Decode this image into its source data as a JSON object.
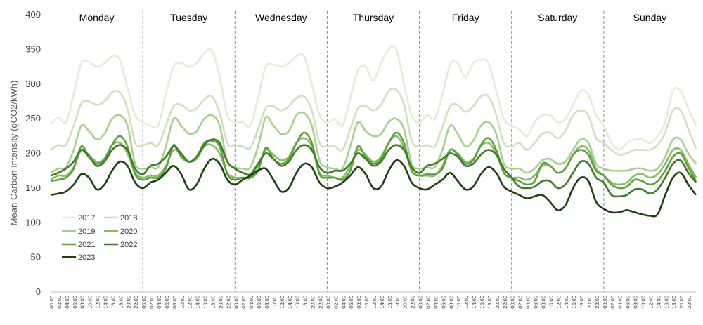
{
  "chart_data": {
    "type": "line",
    "title": "",
    "xlabel": "",
    "ylabel": "Mean Carbon Intensity (gCO2/kWh)",
    "ylim": [
      0,
      400
    ],
    "yticks": [
      "0",
      "50",
      "100",
      "150",
      "200",
      "250",
      "300",
      "350",
      "400"
    ],
    "days": [
      "Monday",
      "Tuesday",
      "Wednesday",
      "Thursday",
      "Friday",
      "Saturday",
      "Sunday"
    ],
    "hour_ticks": [
      "00:00",
      "02:00",
      "04:00",
      "06:00",
      "08:00",
      "10:00",
      "12:00",
      "14:00",
      "16:00",
      "18:00",
      "20:00",
      "22:00"
    ],
    "grid": false,
    "legend_position": "bottom-left",
    "series_profile_points": [
      "00:00",
      "02:00",
      "04:00",
      "06:00",
      "08:00",
      "10:00",
      "12:00",
      "14:00",
      "16:00",
      "18:00",
      "20:00",
      "22:00",
      "24:00"
    ],
    "series": [
      {
        "name": "2017",
        "color": "#e3ecd7",
        "days": {
          "Monday": [
            242,
            252,
            245,
            285,
            330,
            332,
            325,
            330,
            340,
            335,
            295,
            255,
            245
          ],
          "Tuesday": [
            245,
            240,
            240,
            285,
            325,
            330,
            325,
            330,
            345,
            348,
            310,
            255,
            245
          ],
          "Wednesday": [
            245,
            245,
            240,
            280,
            325,
            328,
            325,
            330,
            340,
            340,
            300,
            255,
            245
          ],
          "Thursday": [
            245,
            250,
            240,
            280,
            320,
            325,
            305,
            330,
            350,
            350,
            300,
            255,
            245
          ],
          "Friday": [
            245,
            255,
            250,
            285,
            328,
            330,
            310,
            330,
            335,
            330,
            290,
            250,
            240
          ],
          "Saturday": [
            240,
            235,
            225,
            245,
            255,
            255,
            245,
            250,
            270,
            290,
            285,
            255,
            240
          ],
          "Sunday": [
            225,
            215,
            205,
            215,
            220,
            220,
            215,
            225,
            245,
            290,
            290,
            265,
            240
          ]
        }
      },
      {
        "name": "2018",
        "color": "#cfe1bc",
        "days": {
          "Monday": [
            205,
            212,
            212,
            240,
            272,
            275,
            270,
            275,
            288,
            288,
            265,
            215,
            212
          ],
          "Tuesday": [
            212,
            215,
            212,
            240,
            268,
            270,
            262,
            265,
            278,
            282,
            258,
            215,
            212
          ],
          "Wednesday": [
            212,
            210,
            208,
            235,
            265,
            268,
            262,
            268,
            280,
            282,
            262,
            215,
            210
          ],
          "Thursday": [
            210,
            210,
            205,
            235,
            265,
            268,
            262,
            270,
            290,
            292,
            270,
            218,
            210
          ],
          "Friday": [
            210,
            212,
            210,
            238,
            268,
            270,
            260,
            268,
            282,
            282,
            255,
            215,
            210
          ],
          "Saturday": [
            220,
            215,
            205,
            215,
            228,
            230,
            222,
            232,
            255,
            262,
            255,
            222,
            215
          ],
          "Sunday": [
            212,
            205,
            198,
            200,
            205,
            205,
            205,
            212,
            230,
            262,
            262,
            235,
            207
          ]
        }
      },
      {
        "name": "2019",
        "color": "#a9cf8f",
        "days": {
          "Monday": [
            172,
            178,
            180,
            205,
            240,
            232,
            220,
            228,
            250,
            255,
            240,
            185,
            178
          ],
          "Tuesday": [
            178,
            180,
            180,
            210,
            250,
            240,
            228,
            232,
            250,
            255,
            240,
            188,
            180
          ],
          "Wednesday": [
            180,
            178,
            180,
            210,
            252,
            240,
            228,
            232,
            255,
            258,
            240,
            190,
            180
          ],
          "Thursday": [
            180,
            178,
            178,
            210,
            245,
            232,
            225,
            228,
            245,
            250,
            235,
            185,
            178
          ],
          "Friday": [
            178,
            180,
            180,
            205,
            240,
            228,
            210,
            218,
            240,
            245,
            228,
            185,
            178
          ],
          "Saturday": [
            180,
            178,
            172,
            178,
            190,
            192,
            185,
            188,
            205,
            220,
            215,
            185,
            178
          ],
          "Sunday": [
            175,
            175,
            175,
            175,
            178,
            178,
            175,
            178,
            195,
            220,
            220,
            200,
            185
          ]
        }
      },
      {
        "name": "2020",
        "color": "#86bd6a",
        "days": {
          "Monday": [
            162,
            168,
            168,
            180,
            205,
            198,
            188,
            192,
            212,
            215,
            200,
            172,
            165
          ],
          "Tuesday": [
            165,
            168,
            168,
            182,
            205,
            198,
            188,
            192,
            210,
            212,
            200,
            172,
            165
          ],
          "Wednesday": [
            165,
            165,
            165,
            182,
            205,
            198,
            190,
            195,
            215,
            222,
            210,
            172,
            168
          ],
          "Thursday": [
            168,
            165,
            165,
            182,
            205,
            198,
            188,
            195,
            215,
            225,
            208,
            175,
            168
          ],
          "Friday": [
            168,
            168,
            168,
            182,
            205,
            200,
            188,
            192,
            210,
            215,
            200,
            172,
            165
          ],
          "Saturday": [
            168,
            165,
            162,
            168,
            182,
            182,
            172,
            178,
            198,
            210,
            205,
            178,
            168
          ],
          "Sunday": [
            160,
            158,
            155,
            158,
            168,
            170,
            165,
            170,
            185,
            205,
            205,
            185,
            165
          ]
        }
      },
      {
        "name": "2021",
        "color": "#5ea03f",
        "days": {
          "Monday": [
            160,
            162,
            165,
            178,
            210,
            195,
            185,
            192,
            212,
            225,
            210,
            170,
            162
          ],
          "Tuesday": [
            162,
            165,
            165,
            178,
            212,
            195,
            188,
            195,
            215,
            218,
            210,
            170,
            162
          ],
          "Wednesday": [
            165,
            165,
            165,
            175,
            208,
            192,
            185,
            192,
            215,
            230,
            215,
            170,
            165
          ],
          "Thursday": [
            168,
            165,
            162,
            175,
            210,
            195,
            185,
            192,
            215,
            230,
            215,
            175,
            168
          ],
          "Friday": [
            170,
            170,
            170,
            178,
            205,
            198,
            185,
            190,
            212,
            222,
            205,
            172,
            165
          ],
          "Saturday": [
            168,
            160,
            155,
            160,
            185,
            182,
            172,
            178,
            198,
            205,
            198,
            175,
            168
          ],
          "Sunday": [
            160,
            155,
            150,
            152,
            162,
            160,
            155,
            160,
            175,
            195,
            200,
            180,
            160
          ]
        }
      },
      {
        "name": "2022",
        "color": "#3e7a2a",
        "days": {
          "Monday": [
            168,
            172,
            178,
            188,
            205,
            195,
            182,
            188,
            205,
            212,
            205,
            178,
            170
          ],
          "Tuesday": [
            178,
            182,
            185,
            195,
            210,
            200,
            188,
            195,
            212,
            220,
            215,
            188,
            178
          ],
          "Wednesday": [
            178,
            172,
            170,
            185,
            200,
            192,
            182,
            188,
            205,
            212,
            205,
            180,
            172
          ],
          "Thursday": [
            172,
            175,
            175,
            185,
            200,
            192,
            182,
            188,
            205,
            212,
            205,
            180,
            172
          ],
          "Friday": [
            178,
            182,
            185,
            192,
            200,
            195,
            182,
            185,
            198,
            205,
            198,
            178,
            165
          ],
          "Saturday": [
            158,
            152,
            150,
            152,
            160,
            160,
            150,
            155,
            172,
            188,
            185,
            165,
            158
          ],
          "Sunday": [
            145,
            140,
            138,
            140,
            148,
            148,
            142,
            148,
            165,
            185,
            190,
            172,
            158
          ]
        }
      },
      {
        "name": "2023",
        "color": "#1e3f12",
        "days": {
          "Monday": [
            140,
            142,
            145,
            155,
            170,
            165,
            148,
            155,
            175,
            188,
            182,
            158,
            150
          ],
          "Tuesday": [
            152,
            158,
            162,
            172,
            182,
            170,
            148,
            155,
            178,
            192,
            185,
            162,
            155
          ],
          "Wednesday": [
            158,
            162,
            168,
            175,
            178,
            162,
            145,
            150,
            172,
            185,
            180,
            158,
            150
          ],
          "Thursday": [
            150,
            152,
            158,
            168,
            180,
            170,
            150,
            152,
            175,
            190,
            182,
            158,
            150
          ],
          "Friday": [
            145,
            148,
            155,
            162,
            172,
            160,
            148,
            152,
            170,
            180,
            172,
            152,
            145
          ],
          "Saturday": [
            145,
            140,
            135,
            138,
            140,
            130,
            118,
            125,
            150,
            165,
            160,
            130,
            120
          ],
          "Sunday": [
            118,
            115,
            115,
            118,
            115,
            112,
            110,
            112,
            140,
            165,
            172,
            155,
            140
          ]
        }
      }
    ]
  }
}
